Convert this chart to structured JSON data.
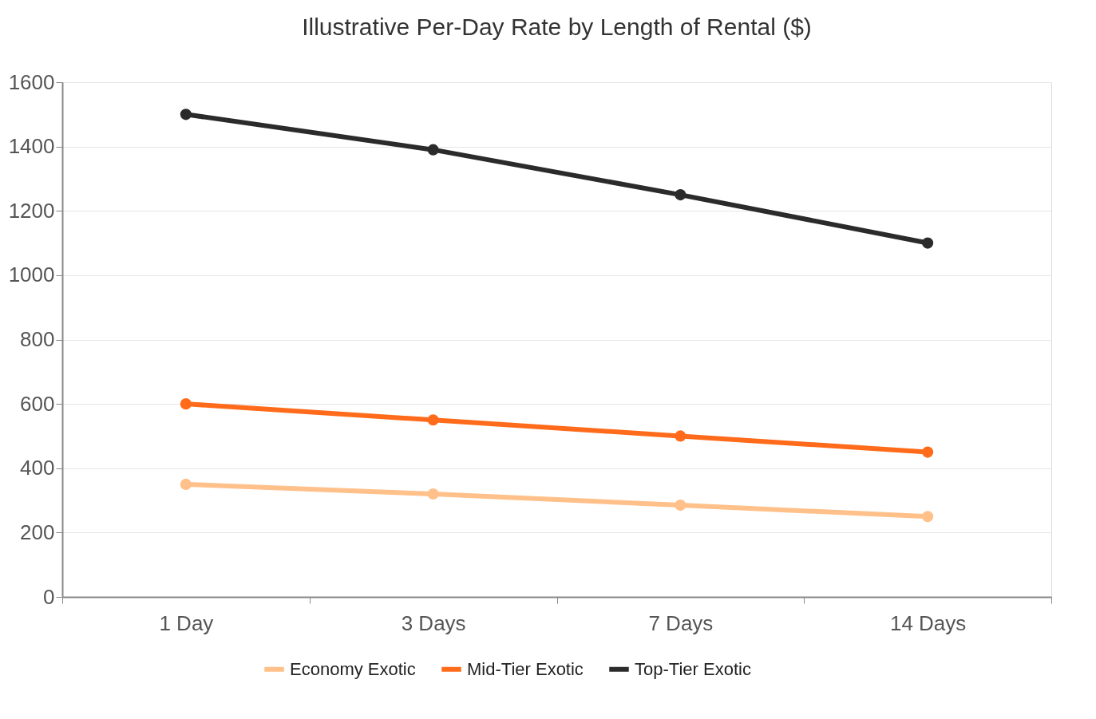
{
  "chart_data": {
    "type": "line",
    "title": "Illustrative Per-Day Rate by Length of Rental ($)",
    "categories": [
      "1 Day",
      "3 Days",
      "7 Days",
      "14 Days"
    ],
    "series": [
      {
        "name": "Economy Exotic",
        "color": "#ffc08a",
        "values": [
          350,
          320,
          285,
          250
        ]
      },
      {
        "name": "Mid-Tier Exotic",
        "color": "#ff6b1a",
        "values": [
          600,
          550,
          500,
          450
        ]
      },
      {
        "name": "Top-Tier Exotic",
        "color": "#2b2b2b",
        "values": [
          1500,
          1390,
          1250,
          1100
        ]
      }
    ],
    "ylim": [
      0,
      1600
    ],
    "yticks": [
      0,
      200,
      400,
      600,
      800,
      1000,
      1200,
      1400,
      1600
    ],
    "grid": "y",
    "legend": "bottom",
    "marker": "circle",
    "line_style": "solid"
  }
}
